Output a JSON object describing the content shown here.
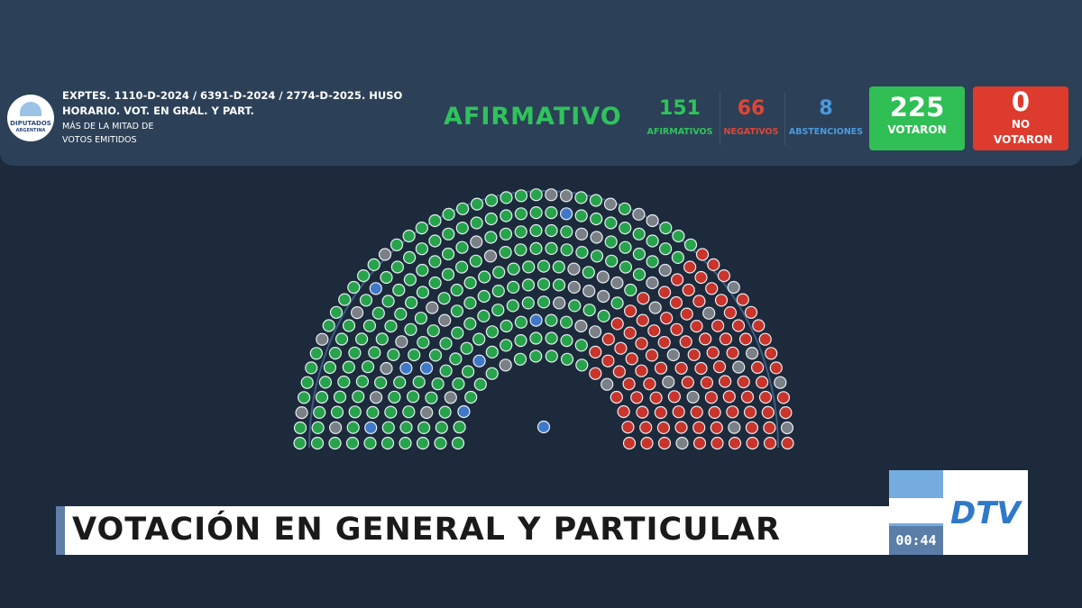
{
  "header": {
    "logo_top": "DIPUTADOS",
    "logo_bottom": "ARGENTINA",
    "title": "EXPTES. 1110-D-2024 / 6391-D-2024 / 2774-D-2025. HUSO HORARIO. VOT. EN GRAL. Y PART.",
    "subtitle": "MÁS DE LA MITAD DE VOTOS EMITIDOS",
    "result": "AFIRMATIVO"
  },
  "counts": [
    {
      "value": "151",
      "label": "AFIRMATIVOS"
    },
    {
      "value": "66",
      "label": "NEGATIVOS"
    },
    {
      "value": "8",
      "label": "ABSTENCIONES"
    }
  ],
  "totals": [
    {
      "value": "225",
      "label": "VOTARON"
    },
    {
      "value": "0",
      "label": "NO VOTARON"
    }
  ],
  "banner": {
    "title": "VOTACIÓN EN GENERAL Y PARTICULAR",
    "clock": "00:44",
    "channel": "DTV"
  }
}
